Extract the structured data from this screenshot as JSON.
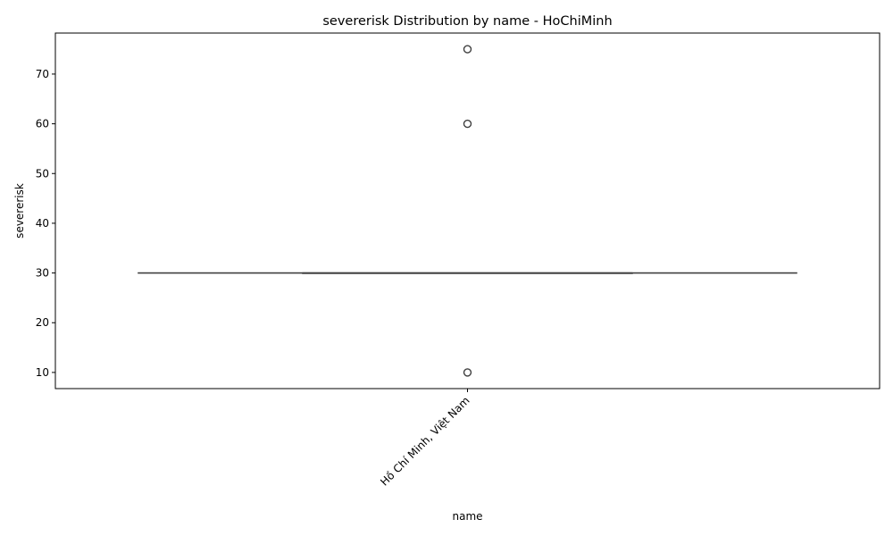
{
  "chart_data": {
    "type": "boxplot",
    "title": "severerisk Distribution by name - HoChiMinh",
    "xlabel": "name",
    "ylabel": "severerisk",
    "categories": [
      "Hồ Chí Minh, Việt Nam"
    ],
    "boxes": [
      {
        "category": "Hồ Chí Minh, Việt Nam",
        "q1": 30,
        "median": 30,
        "q3": 30,
        "whisker_low": 30,
        "whisker_high": 30,
        "outliers": [
          10,
          60,
          75
        ]
      }
    ],
    "yticks": [
      10,
      20,
      30,
      40,
      50,
      60,
      70
    ],
    "ylim": [
      6.75,
      78.25
    ],
    "grid": false,
    "colors": {
      "box": "#3f3f3f",
      "outlier_edge": "#3f3f3f",
      "axis": "#000000"
    }
  }
}
